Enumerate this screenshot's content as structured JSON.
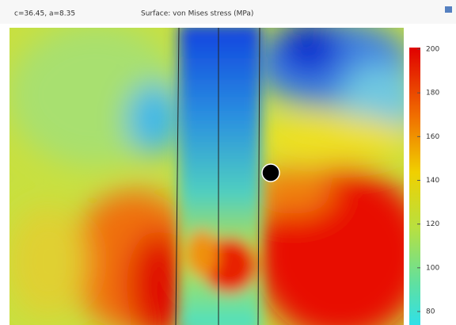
{
  "header": {
    "params": "c=36.45, a=8.35",
    "title": "Surface: von Mises stress (MPa)"
  },
  "colorbar": {
    "ticks": [
      200,
      180,
      160,
      140,
      120,
      100,
      80
    ]
  }
}
